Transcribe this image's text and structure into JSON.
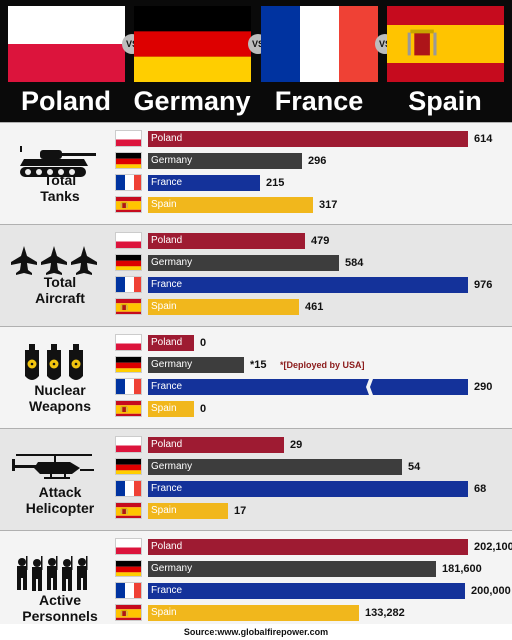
{
  "countries": [
    {
      "key": "poland",
      "name": "Poland",
      "bar_color": "#9e1b32",
      "label_color": "#ffffff"
    },
    {
      "key": "germany",
      "name": "Germany",
      "bar_color": "#3d3d3d",
      "label_color": "#ffffff"
    },
    {
      "key": "france",
      "name": "France",
      "bar_color": "#14329a",
      "label_color": "#ffffff"
    },
    {
      "key": "spain",
      "name": "Spain",
      "bar_color": "#f1b71c",
      "label_color": "#ffffff"
    }
  ],
  "vs_label": "VS",
  "chart_data": {
    "type": "bar",
    "categories": [
      "Poland",
      "Germany",
      "France",
      "Spain"
    ],
    "panels": [
      {
        "key": "tanks",
        "title": "Total\nTanks",
        "icon": "tank-icon",
        "max": 614,
        "values": [
          614,
          296,
          215,
          317
        ],
        "labels": [
          "614",
          "296",
          "215",
          "317"
        ]
      },
      {
        "key": "aircraft",
        "title": "Total\nAircraft",
        "icon": "fighter-jets-icon",
        "max": 976,
        "values": [
          479,
          584,
          976,
          461
        ],
        "labels": [
          "479",
          "584",
          "976",
          "461"
        ]
      },
      {
        "key": "nuclear",
        "title": "Nuclear\nWeapons",
        "icon": "nuclear-bombs-icon",
        "max": 290,
        "values": [
          0,
          15,
          290,
          0
        ],
        "labels": [
          "0",
          "*15",
          "290",
          "0"
        ],
        "note": "*[Deployed by USA]",
        "broken_axis_series": "France"
      },
      {
        "key": "helicopter",
        "title": "Attack\nHelicopter",
        "icon": "attack-helicopter-icon",
        "max": 68,
        "values": [
          29,
          54,
          68,
          17
        ],
        "labels": [
          "29",
          "54",
          "68",
          "17"
        ]
      },
      {
        "key": "personnel",
        "title": "Active\nPersonnels",
        "icon": "soldiers-icon",
        "max": 202100,
        "values": [
          202100,
          181600,
          200000,
          133282
        ],
        "labels": [
          "202,100",
          "181,600",
          "200,000",
          "133,282"
        ]
      }
    ]
  },
  "source": "Source:www.globalfirepower.com"
}
